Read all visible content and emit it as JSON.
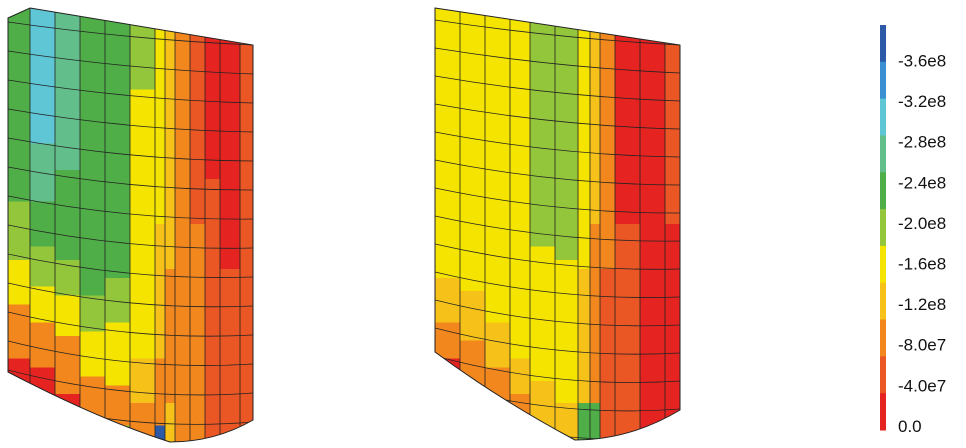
{
  "colorbar": {
    "labels": [
      "-3.6e8",
      "-3.2e8",
      "-2.8e8",
      "-2.4e8",
      "-2.0e8",
      "-1.6e8",
      "-1.2e8",
      "-8.0e7",
      "-4.0e7",
      "0.0"
    ]
  }
}
